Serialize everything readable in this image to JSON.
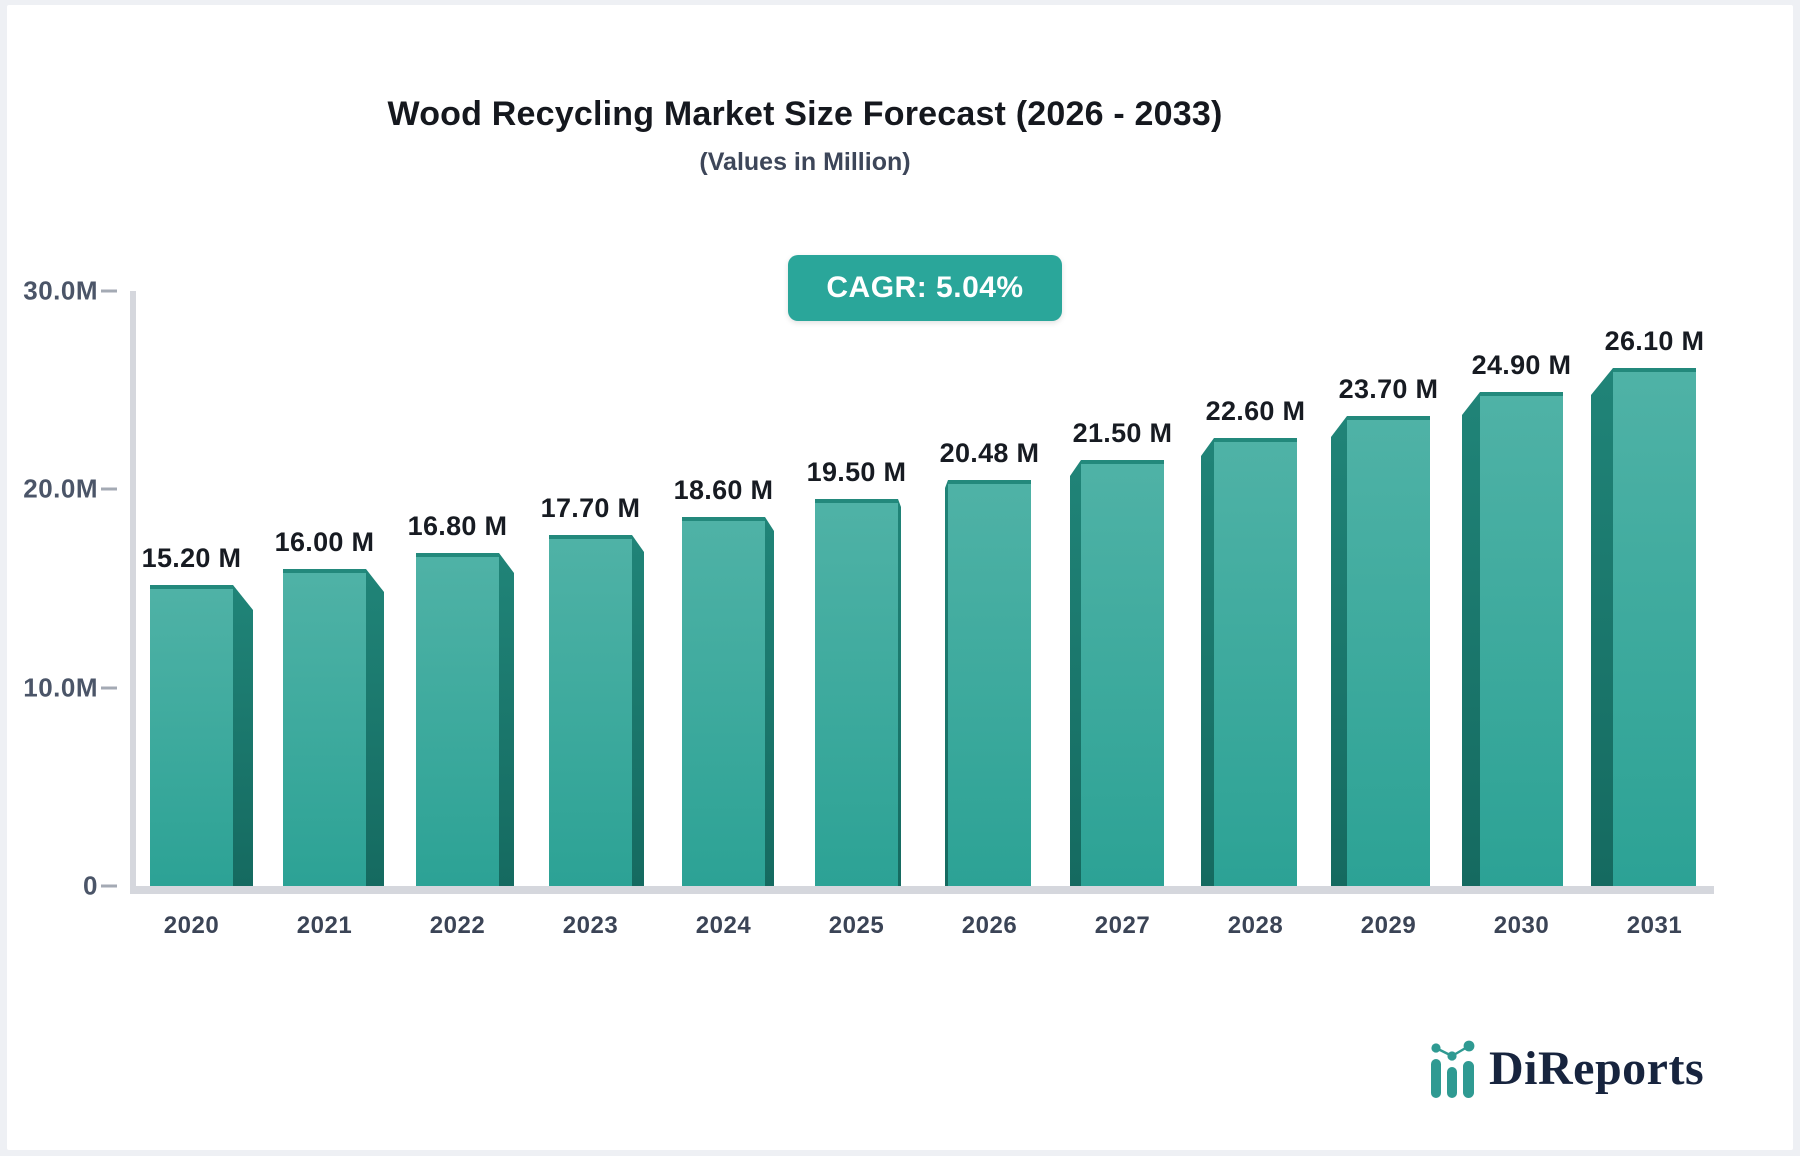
{
  "title": "Wood Recycling Market Size Forecast (2026 - 2033)",
  "subtitle": "(Values in Million)",
  "badge": {
    "label": "CAGR: 5.04%"
  },
  "y_axis": {
    "ticks": [
      "30.0M",
      "20.0M",
      "10.0M",
      "0"
    ]
  },
  "chart_data": {
    "type": "bar",
    "title": "Wood Recycling Market Size Forecast (2026 - 2033)",
    "subtitle": "(Values in Million)",
    "unit": "Million",
    "cagr": "5.04%",
    "categories": [
      "2020",
      "2021",
      "2022",
      "2023",
      "2024",
      "2025",
      "2026",
      "2027",
      "2028",
      "2029",
      "2030",
      "2031"
    ],
    "values": [
      15.2,
      16.0,
      16.8,
      17.7,
      18.6,
      19.5,
      20.48,
      21.5,
      22.6,
      23.7,
      24.9,
      26.1
    ],
    "value_labels": [
      "15.20 M",
      "16.00 M",
      "16.80 M",
      "17.70 M",
      "18.60 M",
      "19.50 M",
      "20.48 M",
      "21.50 M",
      "22.60 M",
      "23.70 M",
      "24.90 M",
      "26.10 M"
    ],
    "xlabel": "",
    "ylabel": "",
    "ylim": [
      0,
      30
    ],
    "y_tick_labels": [
      "0",
      "10.0M",
      "20.0M",
      "30.0M"
    ],
    "grid": false,
    "legend": false,
    "style": "3d-extruded-bars"
  },
  "colors": {
    "accent": "#2aa69a",
    "bar_gradient_top": "#4fb2a6",
    "bar_gradient_bottom": "#2ca295",
    "bar_top_edge": "#23897c",
    "bar_side_dark_top": "#208478",
    "bar_side_dark_bottom": "#156a60",
    "axis_gray": "#d5d7dd",
    "logo_navy": "#17243e",
    "logo_teal": "#2f9a92"
  },
  "logo": {
    "text": "DiReports",
    "icon": "mini-bar-chart-logo-icon"
  }
}
